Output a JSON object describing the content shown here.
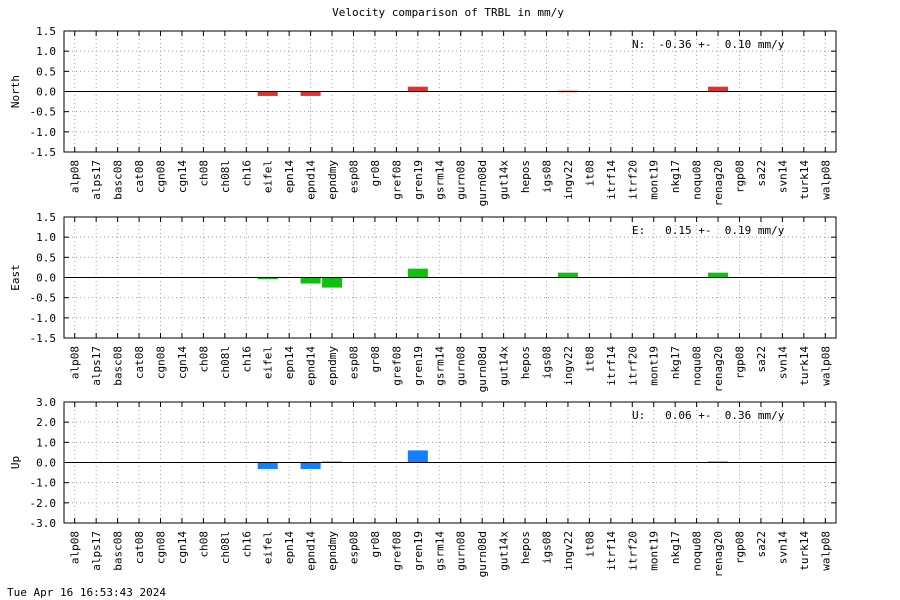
{
  "title": "Velocity comparison of TRBL in mm/y",
  "footer": "Tue Apr 16 16:53:43 2024",
  "chart_data": [
    {
      "type": "bar",
      "ylabel": "North",
      "color": "#e03030",
      "annotation": "N:  -0.36 +-  0.10 mm/y",
      "ylim": [
        -1.5,
        1.5
      ],
      "yticks": [
        "1.5",
        "1.0",
        "0.5",
        "0.0",
        "-0.5",
        "-1.0",
        "-1.5"
      ],
      "categories": [
        "alp08",
        "alps17",
        "basc08",
        "cat08",
        "cgn08",
        "cgn14",
        "ch08",
        "ch08l",
        "ch16",
        "eifel",
        "epn14",
        "epnd14",
        "epndmy",
        "esp08",
        "gr08",
        "gref08",
        "gren19",
        "gsrm14",
        "gurn08",
        "gurn08d",
        "gut14x",
        "hepos",
        "igs08",
        "ingv22",
        "it08",
        "itrf14",
        "itrf20",
        "mont19",
        "nkg17",
        "noqu08",
        "renag20",
        "rgp08",
        "sa22",
        "svn14",
        "turk14",
        "walp08"
      ],
      "values": [
        0,
        0,
        0,
        0,
        0,
        0,
        0,
        0,
        0,
        -0.11,
        0,
        -0.11,
        0,
        0,
        0,
        0,
        0.12,
        0,
        0,
        0,
        0,
        0,
        0,
        0.02,
        0,
        0,
        0,
        0,
        0,
        0,
        0.12,
        0,
        0,
        0,
        0,
        0
      ],
      "grid": true
    },
    {
      "type": "bar",
      "ylabel": "East",
      "color": "#10c010",
      "annotation": "E:   0.15 +-  0.19 mm/y",
      "ylim": [
        -1.5,
        1.5
      ],
      "yticks": [
        "1.5",
        "1.0",
        "0.5",
        "0.0",
        "-0.5",
        "-1.0",
        "-1.5"
      ],
      "categories": [
        "alp08",
        "alps17",
        "basc08",
        "cat08",
        "cgn08",
        "cgn14",
        "ch08",
        "ch08l",
        "ch16",
        "eifel",
        "epn14",
        "epnd14",
        "epndmy",
        "esp08",
        "gr08",
        "gref08",
        "gren19",
        "gsrm14",
        "gurn08",
        "gurn08d",
        "gut14x",
        "hepos",
        "igs08",
        "ingv22",
        "it08",
        "itrf14",
        "itrf20",
        "mont19",
        "nkg17",
        "noqu08",
        "renag20",
        "rgp08",
        "sa22",
        "svn14",
        "turk14",
        "walp08"
      ],
      "values": [
        0,
        0,
        0,
        0,
        0,
        0,
        0,
        0,
        0,
        -0.03,
        0,
        -0.15,
        -0.25,
        0,
        0,
        0,
        0.22,
        0,
        0,
        0,
        0,
        0,
        0,
        0.12,
        0,
        0,
        0,
        0,
        0,
        0,
        0.12,
        0,
        0,
        0,
        0,
        0
      ],
      "grid": true
    },
    {
      "type": "bar",
      "ylabel": "Up",
      "color": "#1080ff",
      "annotation": "U:   0.06 +-  0.36 mm/y",
      "ylim": [
        -3.0,
        3.0
      ],
      "yticks": [
        "3.0",
        "2.0",
        "1.0",
        "0.0",
        "-1.0",
        "-2.0",
        "-3.0"
      ],
      "categories": [
        "alp08",
        "alps17",
        "basc08",
        "cat08",
        "cgn08",
        "cgn14",
        "ch08",
        "ch08l",
        "ch16",
        "eifel",
        "epn14",
        "epnd14",
        "epndmy",
        "esp08",
        "gr08",
        "gref08",
        "gren19",
        "gsrm14",
        "gurn08",
        "gurn08d",
        "gut14x",
        "hepos",
        "igs08",
        "ingv22",
        "it08",
        "itrf14",
        "itrf20",
        "mont19",
        "nkg17",
        "noqu08",
        "renag20",
        "rgp08",
        "sa22",
        "svn14",
        "turk14",
        "walp08"
      ],
      "values": [
        0,
        0,
        0,
        0,
        0,
        0,
        0,
        0,
        0,
        -0.32,
        0,
        -0.32,
        0.05,
        0,
        0,
        0,
        0.6,
        0,
        0,
        0,
        0,
        0,
        0,
        0,
        0,
        0,
        0,
        0,
        0,
        0,
        0.05,
        0,
        0,
        0,
        0,
        0
      ],
      "grid": true
    }
  ]
}
